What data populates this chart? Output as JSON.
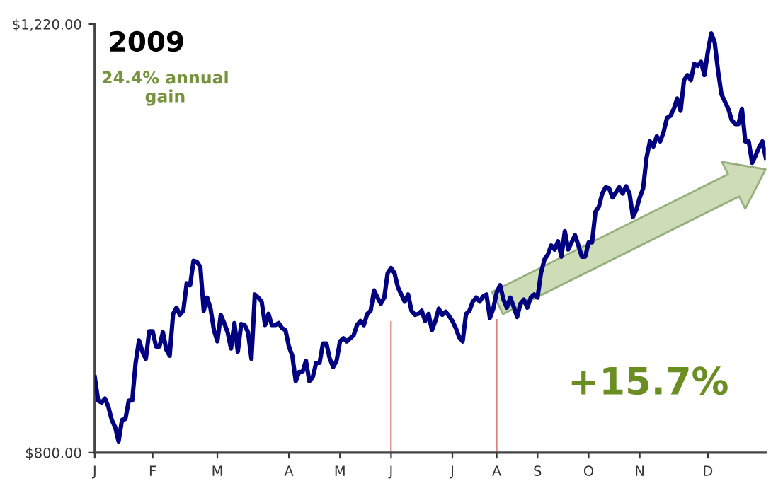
{
  "chart_data": {
    "type": "line",
    "title": "2009",
    "categories": [
      "J",
      null,
      null,
      null,
      null,
      null,
      null,
      null,
      null,
      null,
      null,
      null,
      null,
      null,
      null,
      null,
      null,
      "F",
      null,
      null,
      null,
      null,
      null,
      null,
      null,
      null,
      null,
      null,
      null,
      null,
      null,
      null,
      null,
      null,
      null,
      null,
      "M",
      null,
      null,
      null,
      null,
      null,
      null,
      null,
      null,
      null,
      null,
      null,
      null,
      null,
      null,
      null,
      null,
      null,
      null,
      null,
      null,
      "A",
      null,
      null,
      null,
      null,
      null,
      null,
      null,
      null,
      null,
      null,
      null,
      null,
      null,
      null,
      "M",
      null,
      null,
      null,
      null,
      null,
      null,
      null,
      null,
      null,
      null,
      null,
      null,
      null,
      null,
      "J",
      null,
      null,
      null,
      null,
      null,
      null,
      null,
      null,
      null,
      null,
      null,
      null,
      null,
      null,
      null,
      null,
      null,
      "J",
      null,
      null,
      null,
      null,
      null,
      null,
      null,
      null,
      null,
      null,
      null,
      null,
      "A",
      null,
      null,
      null,
      null,
      null,
      null,
      null,
      null,
      null,
      null,
      null,
      "S",
      null,
      null,
      null,
      null,
      null,
      null,
      null,
      null,
      null,
      null,
      null,
      null,
      null,
      null,
      "O",
      null,
      null,
      null,
      null,
      null,
      null,
      null,
      null,
      null,
      null,
      null,
      null,
      null,
      null,
      "N",
      null,
      null,
      null,
      null,
      null,
      null,
      null,
      null,
      null,
      null,
      null,
      null,
      null,
      null,
      null,
      null,
      null,
      null,
      null,
      "D",
      null,
      null,
      null,
      null,
      null,
      null,
      null,
      null,
      null,
      null,
      null,
      null,
      null,
      null,
      null,
      null,
      null
    ],
    "series": [
      {
        "color": "#000080",
        "values": [
          874,
          851,
          849,
          853,
          845,
          832,
          825,
          811,
          832,
          833,
          851,
          851,
          888,
          910,
          899,
          892,
          919,
          919,
          904,
          904,
          918,
          901,
          895,
          936,
          942,
          935,
          939,
          966,
          964,
          988,
          987,
          982,
          939,
          952,
          941,
          920,
          909,
          935,
          927,
          918,
          902,
          927,
          899,
          926,
          925,
          918,
          892,
          955,
          952,
          948,
          925,
          936,
          925,
          925,
          927,
          922,
          920,
          904,
          895,
          870,
          879,
          879,
          890,
          870,
          874,
          888,
          888,
          907,
          907,
          892,
          884,
          890,
          909,
          912,
          909,
          912,
          915,
          925,
          929,
          925,
          936,
          939,
          959,
          952,
          946,
          952,
          976,
          981,
          976,
          962,
          955,
          948,
          955,
          939,
          935,
          936,
          939,
          929,
          936,
          920,
          929,
          941,
          935,
          938,
          934,
          929,
          922,
          913,
          909,
          936,
          939,
          948,
          952,
          948,
          953,
          955,
          932,
          941,
          957,
          964,
          950,
          942,
          952,
          943,
          933,
          946,
          950,
          942,
          952,
          955,
          952,
          976,
          989,
          994,
          1003,
          999,
          1007,
          992,
          1017,
          999,
          1006,
          1013,
          1003,
          992,
          992,
          1006,
          1006,
          1036,
          1041,
          1054,
          1060,
          1059,
          1050,
          1055,
          1060,
          1054,
          1061,
          1054,
          1031,
          1038,
          1050,
          1059,
          1089,
          1105,
          1100,
          1110,
          1105,
          1114,
          1128,
          1130,
          1137,
          1147,
          1135,
          1165,
          1170,
          1165,
          1181,
          1179,
          1183,
          1170,
          1193,
          1211,
          1202,
          1174,
          1151,
          1144,
          1137,
          1126,
          1122,
          1122,
          1137,
          1105,
          1105,
          1084,
          1091,
          1099,
          1105,
          1089
        ]
      }
    ],
    "ylim": [
      800,
      1220
    ],
    "yticks": [
      {
        "value": 800,
        "label": "$800.00"
      },
      {
        "value": 1220,
        "label": "$1,220.00"
      }
    ],
    "annotations": [
      "24.4% annual\ngain",
      "+15.7%"
    ],
    "grid": false,
    "legend": false,
    "marker": "none",
    "line_style": "solid"
  }
}
